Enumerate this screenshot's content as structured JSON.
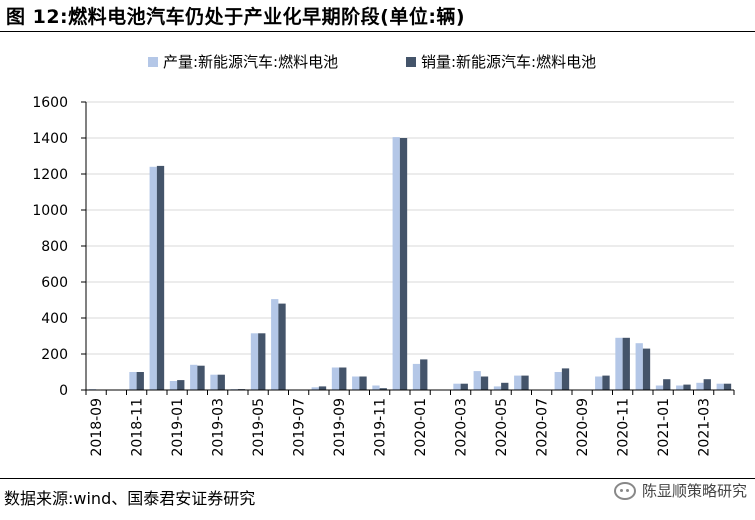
{
  "header": {
    "title": "图 12:燃料电池汽车仍处于产业化早期阶段(单位:辆)"
  },
  "footer": {
    "source": "数据来源:wind、国泰君安证券研究",
    "watermark": "陈显顺策略研究"
  },
  "chart_data": {
    "type": "bar",
    "title": "",
    "xlabel": "",
    "ylabel": "",
    "ylim": [
      0,
      1600
    ],
    "yticks": [
      0,
      200,
      400,
      600,
      800,
      1000,
      1200,
      1400,
      1600
    ],
    "grid": true,
    "legend_position": "top",
    "categories": [
      "2018-09",
      "2018-10",
      "2018-11",
      "2018-12",
      "2019-01",
      "2019-02",
      "2019-03",
      "2019-04",
      "2019-05",
      "2019-06",
      "2019-07",
      "2019-08",
      "2019-09",
      "2019-10",
      "2019-11",
      "2019-12",
      "2020-01",
      "2020-02",
      "2020-03",
      "2020-04",
      "2020-05",
      "2020-06",
      "2020-07",
      "2020-08",
      "2020-09",
      "2020-10",
      "2020-11",
      "2020-12",
      "2021-01",
      "2021-02",
      "2021-03",
      "2021-04"
    ],
    "tick_labels": [
      "2018-09",
      "2018-11",
      "2019-01",
      "2019-03",
      "2019-05",
      "2019-07",
      "2019-09",
      "2019-11",
      "2020-01",
      "2020-03",
      "2020-05",
      "2020-07",
      "2020-09",
      "2020-11",
      "2021-01",
      "2021-03"
    ],
    "series": [
      {
        "name": "产量:新能源汽车:燃料电池",
        "color": "#b4c7e7",
        "values": [
          5,
          0,
          100,
          1240,
          50,
          140,
          85,
          5,
          315,
          505,
          0,
          15,
          125,
          75,
          25,
          1405,
          145,
          0,
          35,
          105,
          20,
          80,
          0,
          100,
          0,
          75,
          290,
          260,
          25,
          25,
          40,
          35
        ]
      },
      {
        "name": "销量:新能源汽车:燃料电池",
        "color": "#44546a",
        "values": [
          0,
          0,
          100,
          1245,
          55,
          135,
          85,
          5,
          315,
          480,
          0,
          20,
          125,
          75,
          10,
          1400,
          170,
          0,
          35,
          75,
          40,
          80,
          0,
          120,
          0,
          80,
          290,
          230,
          60,
          30,
          60,
          35
        ]
      }
    ]
  }
}
